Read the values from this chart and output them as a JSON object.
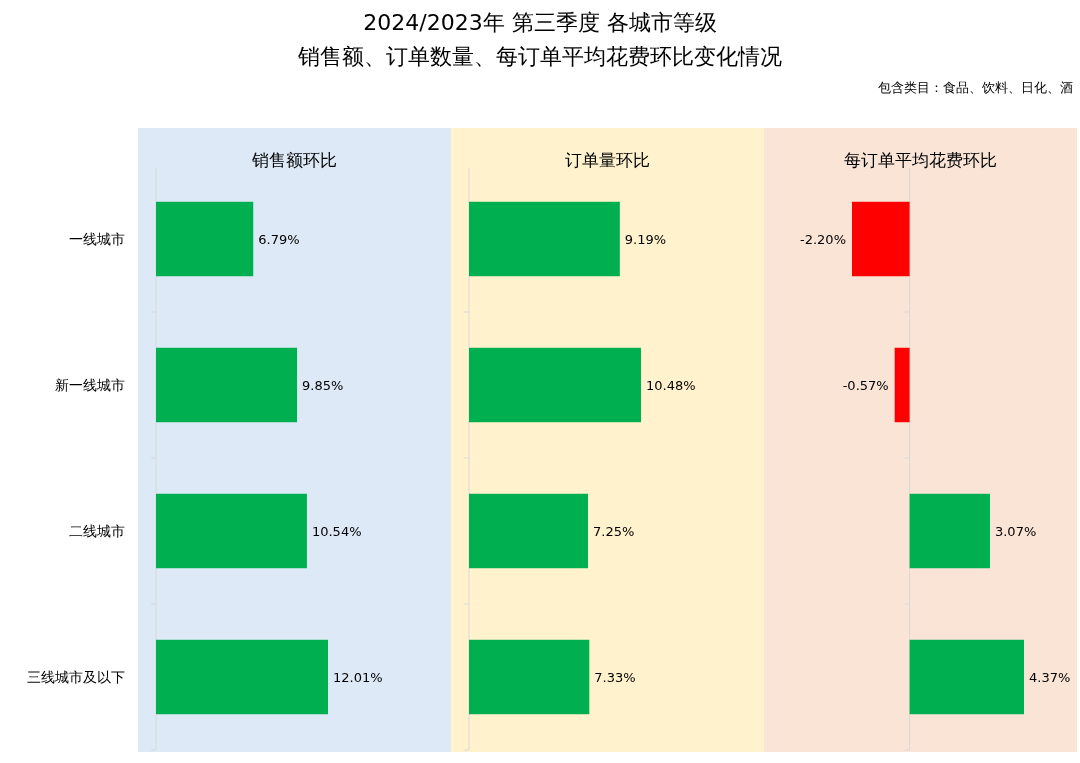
{
  "chart_data": [
    {
      "type": "other",
      "title": "2024/2023年 第三季度 各城市等级",
      "subtitle": "销售额、订单数量、每订单平均花费环比变化情况",
      "annotations": [
        "包含类目：食品、饮料、日化、酒"
      ]
    },
    {
      "type": "bar",
      "orientation": "horizontal",
      "title": "销售额环比",
      "categories": [
        "一线城市",
        "新一线城市",
        "二线城市",
        "三线城市及以下"
      ],
      "tick_labels": "y",
      "values": [
        6.79,
        9.85,
        10.54,
        12.01
      ],
      "colors": [
        "#00b050",
        "#00b050",
        "#00b050",
        "#00b050"
      ],
      "value_labels": [
        "6.79%",
        "9.85%",
        "10.54%",
        "12.01%"
      ]
    },
    {
      "type": "bar",
      "orientation": "horizontal",
      "title": "订单量环比",
      "categories": [
        null,
        null,
        null,
        null
      ],
      "tick_labels": false,
      "values": [
        9.19,
        10.48,
        7.25,
        7.33
      ],
      "colors": [
        "#00b050",
        "#00b050",
        "#00b050",
        "#00b050"
      ],
      "value_labels": [
        "9.19%",
        "10.48%",
        "7.25%",
        "7.33%"
      ]
    },
    {
      "type": "bar",
      "orientation": "horizontal",
      "title": "每订单平均花费环比",
      "categories": [
        null,
        null,
        null,
        null
      ],
      "tick_labels": false,
      "values": [
        -2.2,
        -0.57,
        3.07,
        4.37
      ],
      "colors": [
        "#ff0000",
        "#ff0000",
        "#00b050",
        "#00b050"
      ],
      "value_labels": [
        "-2.20%",
        "-0.57%",
        "3.07%",
        "4.37%"
      ]
    }
  ]
}
